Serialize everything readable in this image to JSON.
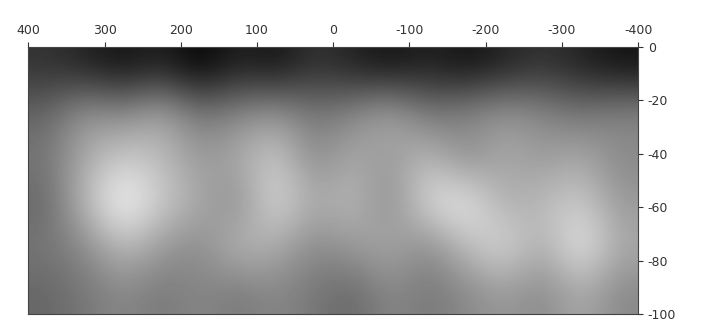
{
  "chart_data": {
    "type": "heatmap",
    "color": "gray",
    "xlim": [
      400,
      -400
    ],
    "ylim": [
      -100,
      0
    ],
    "xticks": [
      400,
      300,
      200,
      100,
      0,
      -100,
      -200,
      -300,
      -400
    ],
    "yticks": [
      0,
      -20,
      -40,
      -60,
      -80,
      -100
    ],
    "cells": [
      [
        0.35,
        0.3,
        0.25,
        0.3,
        0.2,
        0.3,
        0.25,
        0.35,
        0.3,
        0.25,
        0.3,
        0.25,
        0.3,
        0.35,
        0.3,
        0.25
      ],
      [
        0.5,
        0.65,
        0.6,
        0.7,
        0.55,
        0.6,
        0.65,
        0.55,
        0.6,
        0.7,
        0.55,
        0.6,
        0.65,
        0.6,
        0.55,
        0.6
      ],
      [
        0.55,
        0.7,
        0.8,
        0.75,
        0.65,
        0.7,
        0.8,
        0.6,
        0.7,
        0.65,
        0.75,
        0.6,
        0.7,
        0.65,
        0.7,
        0.6
      ],
      [
        0.5,
        0.75,
        0.95,
        0.8,
        0.7,
        0.6,
        0.85,
        0.7,
        0.75,
        0.6,
        0.85,
        0.9,
        0.7,
        0.75,
        0.8,
        0.65
      ],
      [
        0.55,
        0.6,
        0.75,
        0.65,
        0.6,
        0.75,
        0.7,
        0.6,
        0.65,
        0.7,
        0.6,
        0.75,
        0.85,
        0.7,
        0.9,
        0.7
      ],
      [
        0.5,
        0.55,
        0.6,
        0.55,
        0.6,
        0.55,
        0.6,
        0.55,
        0.5,
        0.6,
        0.55,
        0.6,
        0.65,
        0.6,
        0.7,
        0.6
      ]
    ]
  }
}
